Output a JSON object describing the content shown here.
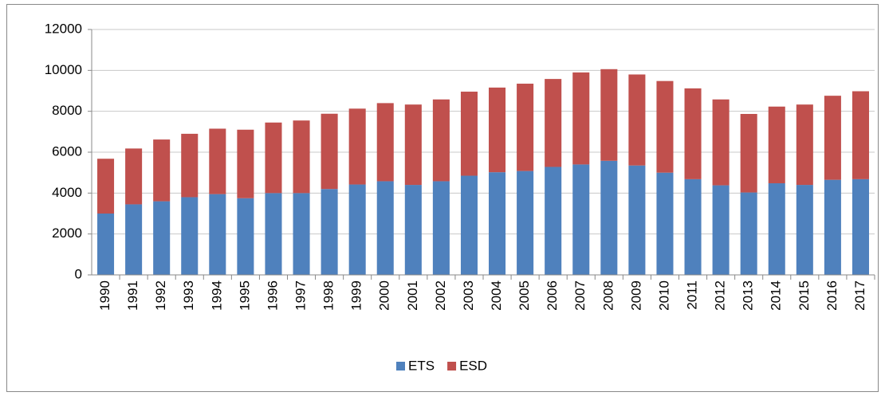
{
  "chart_data": {
    "type": "stacked_bar",
    "categories": [
      "1990",
      "1991",
      "1992",
      "1993",
      "1994",
      "1995",
      "1996",
      "1997",
      "1998",
      "1999",
      "2000",
      "2001",
      "2002",
      "2003",
      "2004",
      "2005",
      "2006",
      "2007",
      "2008",
      "2009",
      "2010",
      "2011",
      "2012",
      "2013",
      "2014",
      "2015",
      "2016",
      "2017"
    ],
    "series": [
      {
        "name": "ETS",
        "color": "#4f81bd",
        "values": [
          3000,
          3450,
          3600,
          3800,
          3950,
          3750,
          4000,
          4000,
          4200,
          4420,
          4580,
          4400,
          4580,
          4850,
          5020,
          5080,
          5280,
          5400,
          5580,
          5350,
          5000,
          4680,
          4380,
          4030,
          4480,
          4400,
          4650,
          4680
        ]
      },
      {
        "name": "ESD",
        "color": "#c0504d",
        "values": [
          2680,
          2730,
          3020,
          3100,
          3200,
          3350,
          3450,
          3550,
          3680,
          3710,
          3820,
          3930,
          4000,
          4110,
          4140,
          4270,
          4300,
          4500,
          4480,
          4450,
          4480,
          4440,
          4200,
          3840,
          3750,
          3930,
          4110,
          4300
        ]
      }
    ],
    "ylim": [
      0,
      12000
    ],
    "yticks": [
      0,
      2000,
      4000,
      6000,
      8000,
      10000,
      12000
    ],
    "grid": true,
    "legend": "bottom"
  }
}
